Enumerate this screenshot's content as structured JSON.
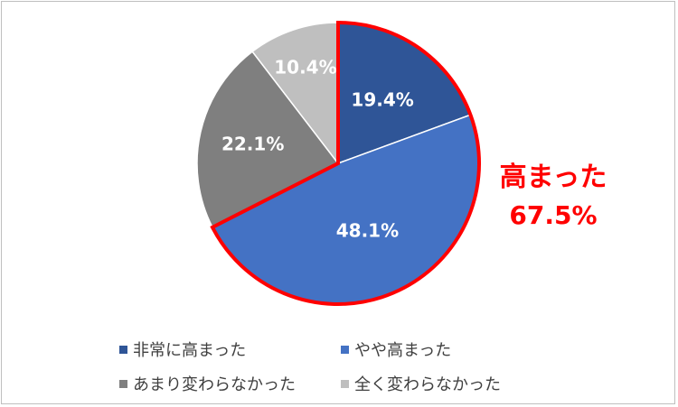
{
  "chart_data": {
    "type": "pie",
    "slices": [
      {
        "label": "非常に高まった",
        "value": 19.4,
        "display": "19.4%",
        "color": "#2f5597"
      },
      {
        "label": "やや高まった",
        "value": 48.1,
        "display": "48.1%",
        "color": "#4472c4"
      },
      {
        "label": "あまり変わらなかった",
        "value": 22.1,
        "display": "22.1%",
        "color": "#7f7f7f"
      },
      {
        "label": "全く変わらなかった",
        "value": 10.4,
        "display": "10.4%",
        "color": "#bfbfbf"
      }
    ],
    "start_angle_deg": 0,
    "direction": "clockwise",
    "legend_position": "bottom",
    "highlight": {
      "slices": [
        0,
        1
      ],
      "outline_color": "#ff0000",
      "label_line1": "高まった",
      "label_line2": "67.5%"
    }
  }
}
